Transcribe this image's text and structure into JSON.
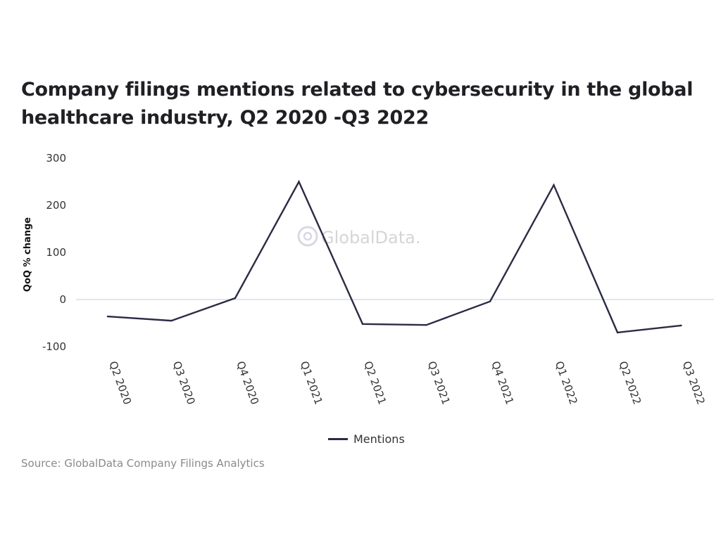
{
  "chart_data": {
    "type": "line",
    "title": "Company filings mentions related to cybersecurity in the global healthcare industry, Q2 2020 -Q3 2022",
    "ylabel": "QoQ % change",
    "xlabel": "",
    "categories": [
      "Q2 2020",
      "Q3 2020",
      "Q4 2020",
      "Q1 2021",
      "Q2 2021",
      "Q3 2021",
      "Q4 2021",
      "Q1 2022",
      "Q2 2022",
      "Q3 2022"
    ],
    "yticks": [
      300,
      200,
      100,
      0,
      -100
    ],
    "ylim": [
      -100,
      300
    ],
    "series": [
      {
        "name": "Mentions",
        "color": "#2b2b45",
        "values": [
          -36,
          -45,
          3,
          250,
          -52,
          -54,
          -4,
          243,
          -70,
          -55
        ]
      }
    ],
    "zero_line": true,
    "grid": false,
    "legend": "bottom-center"
  },
  "watermark": "GlobalData.",
  "source": "Source: GlobalData Company Filings Analytics"
}
